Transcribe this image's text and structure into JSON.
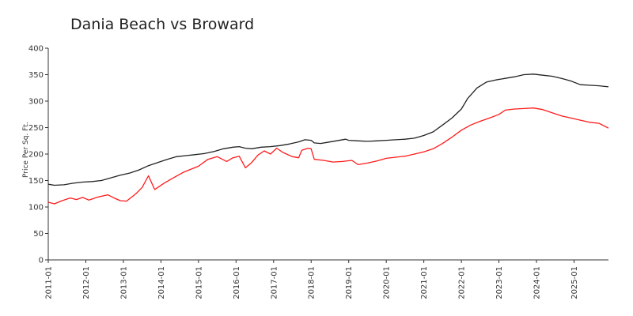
{
  "chart_data": {
    "type": "line",
    "title": "Dania Beach vs Broward",
    "xlabel": "",
    "ylabel": "Price Per Sq. Ft.",
    "ylim": [
      0,
      400
    ],
    "yticks": [
      0,
      50,
      100,
      150,
      200,
      250,
      300,
      350,
      400
    ],
    "xlim": [
      "2011-01",
      "2025-12"
    ],
    "xticks": [
      "2011-01",
      "2012-01",
      "2013-01",
      "2014-01",
      "2015-01",
      "2016-01",
      "2017-01",
      "2018-01",
      "2019-01",
      "2020-01",
      "2021-01",
      "2022-01",
      "2023-01",
      "2024-01",
      "2025-01"
    ],
    "grid": false,
    "legend": "none",
    "series": [
      {
        "color": "#222222",
        "points": [
          [
            "2011-01",
            143
          ],
          [
            "2011-03",
            141
          ],
          [
            "2011-06",
            142
          ],
          [
            "2011-09",
            145
          ],
          [
            "2011-12",
            147
          ],
          [
            "2012-03",
            148
          ],
          [
            "2012-06",
            150
          ],
          [
            "2012-09",
            155
          ],
          [
            "2012-12",
            160
          ],
          [
            "2013-03",
            164
          ],
          [
            "2013-06",
            170
          ],
          [
            "2013-09",
            178
          ],
          [
            "2013-12",
            184
          ],
          [
            "2014-03",
            190
          ],
          [
            "2014-06",
            195
          ],
          [
            "2014-09",
            197
          ],
          [
            "2014-12",
            199
          ],
          [
            "2015-03",
            201
          ],
          [
            "2015-06",
            205
          ],
          [
            "2015-09",
            210
          ],
          [
            "2015-12",
            213
          ],
          [
            "2016-02",
            214
          ],
          [
            "2016-04",
            211
          ],
          [
            "2016-06",
            210
          ],
          [
            "2016-09",
            213
          ],
          [
            "2016-12",
            214
          ],
          [
            "2017-03",
            216
          ],
          [
            "2017-06",
            219
          ],
          [
            "2017-09",
            223
          ],
          [
            "2017-11",
            227
          ],
          [
            "2018-01",
            226
          ],
          [
            "2018-02",
            221
          ],
          [
            "2018-04",
            220
          ],
          [
            "2018-06",
            222
          ],
          [
            "2018-09",
            225
          ],
          [
            "2018-12",
            228
          ],
          [
            "2019-01",
            226
          ],
          [
            "2019-04",
            225
          ],
          [
            "2019-07",
            224
          ],
          [
            "2019-10",
            225
          ],
          [
            "2020-01",
            226
          ],
          [
            "2020-04",
            227
          ],
          [
            "2020-07",
            228
          ],
          [
            "2020-10",
            230
          ],
          [
            "2021-01",
            235
          ],
          [
            "2021-04",
            242
          ],
          [
            "2021-07",
            255
          ],
          [
            "2021-10",
            268
          ],
          [
            "2022-01",
            285
          ],
          [
            "2022-03",
            305
          ],
          [
            "2022-06",
            325
          ],
          [
            "2022-09",
            336
          ],
          [
            "2022-12",
            340
          ],
          [
            "2023-03",
            343
          ],
          [
            "2023-06",
            346
          ],
          [
            "2023-09",
            350
          ],
          [
            "2023-12",
            351
          ],
          [
            "2024-03",
            349
          ],
          [
            "2024-06",
            347
          ],
          [
            "2024-09",
            343
          ],
          [
            "2024-12",
            338
          ],
          [
            "2025-03",
            331
          ],
          [
            "2025-06",
            330
          ],
          [
            "2025-09",
            329
          ],
          [
            "2025-12",
            327
          ]
        ]
      },
      {
        "color": "#ff1a1a",
        "points": [
          [
            "2011-01",
            109
          ],
          [
            "2011-03",
            106
          ],
          [
            "2011-05",
            111
          ],
          [
            "2011-08",
            117
          ],
          [
            "2011-10",
            114
          ],
          [
            "2011-12",
            118
          ],
          [
            "2012-02",
            113
          ],
          [
            "2012-05",
            119
          ],
          [
            "2012-08",
            123
          ],
          [
            "2012-10",
            117
          ],
          [
            "2012-12",
            112
          ],
          [
            "2013-02",
            111
          ],
          [
            "2013-05",
            125
          ],
          [
            "2013-07",
            137
          ],
          [
            "2013-09",
            159
          ],
          [
            "2013-11",
            133
          ],
          [
            "2014-02",
            145
          ],
          [
            "2014-05",
            155
          ],
          [
            "2014-08",
            165
          ],
          [
            "2014-10",
            170
          ],
          [
            "2015-01",
            177
          ],
          [
            "2015-04",
            190
          ],
          [
            "2015-07",
            195
          ],
          [
            "2015-10",
            186
          ],
          [
            "2015-12",
            193
          ],
          [
            "2016-02",
            196
          ],
          [
            "2016-04",
            174
          ],
          [
            "2016-06",
            184
          ],
          [
            "2016-08",
            198
          ],
          [
            "2016-10",
            206
          ],
          [
            "2016-12",
            200
          ],
          [
            "2017-02",
            211
          ],
          [
            "2017-04",
            203
          ],
          [
            "2017-07",
            195
          ],
          [
            "2017-09",
            193
          ],
          [
            "2017-10",
            207
          ],
          [
            "2017-12",
            211
          ],
          [
            "2018-01",
            210
          ],
          [
            "2018-02",
            190
          ],
          [
            "2018-05",
            188
          ],
          [
            "2018-08",
            185
          ],
          [
            "2018-11",
            186
          ],
          [
            "2019-02",
            188
          ],
          [
            "2019-04",
            180
          ],
          [
            "2019-07",
            183
          ],
          [
            "2019-10",
            187
          ],
          [
            "2020-01",
            192
          ],
          [
            "2020-04",
            194
          ],
          [
            "2020-07",
            196
          ],
          [
            "2020-10",
            200
          ],
          [
            "2021-01",
            204
          ],
          [
            "2021-04",
            210
          ],
          [
            "2021-07",
            220
          ],
          [
            "2021-10",
            232
          ],
          [
            "2022-01",
            245
          ],
          [
            "2022-04",
            255
          ],
          [
            "2022-07",
            262
          ],
          [
            "2022-10",
            268
          ],
          [
            "2023-01",
            275
          ],
          [
            "2023-03",
            283
          ],
          [
            "2023-06",
            285
          ],
          [
            "2023-09",
            286
          ],
          [
            "2023-12",
            287
          ],
          [
            "2024-03",
            284
          ],
          [
            "2024-06",
            278
          ],
          [
            "2024-09",
            272
          ],
          [
            "2024-12",
            268
          ],
          [
            "2025-03",
            264
          ],
          [
            "2025-06",
            260
          ],
          [
            "2025-09",
            258
          ],
          [
            "2025-12",
            249
          ]
        ]
      }
    ]
  }
}
